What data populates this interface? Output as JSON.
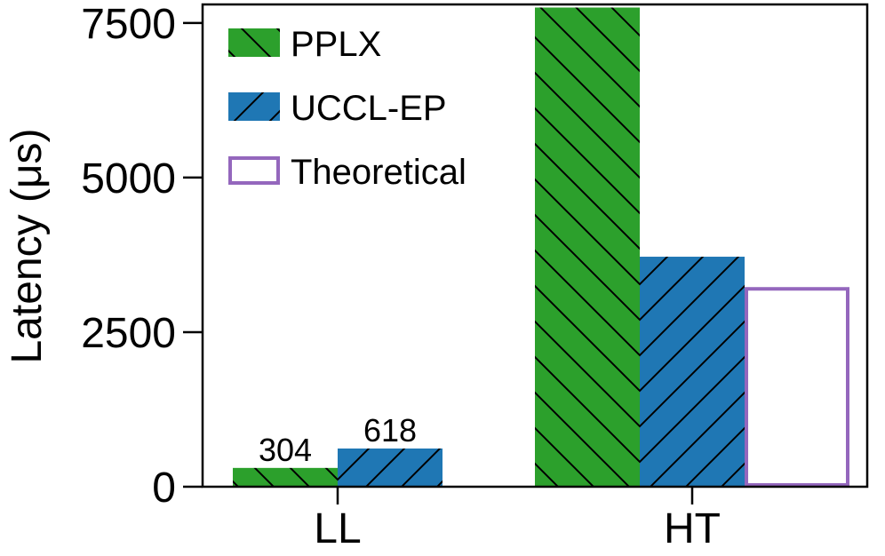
{
  "chart_data": {
    "type": "bar",
    "title": "",
    "xlabel": "",
    "ylabel": "Latency (μs)",
    "ylim": [
      0,
      7800
    ],
    "yticks": [
      0,
      2500,
      5000,
      7500
    ],
    "categories": [
      "LL",
      "HT"
    ],
    "grid": false,
    "legend_position": "top-left",
    "series": [
      {
        "name": "PPLX",
        "values": [
          304,
          7750
        ],
        "color": "#2ca02c",
        "hatch": "\\",
        "data_labels": [
          "304",
          null
        ]
      },
      {
        "name": "UCCL-EP",
        "values": [
          618,
          3720
        ],
        "color": "#1f77b4",
        "hatch": "/",
        "data_labels": [
          "618",
          null
        ]
      },
      {
        "name": "Theoretical",
        "values": [
          null,
          3200
        ],
        "color": "#ffffff",
        "edge_color": "#9467bd",
        "hatch": "",
        "data_labels": [
          null,
          null
        ]
      }
    ]
  }
}
